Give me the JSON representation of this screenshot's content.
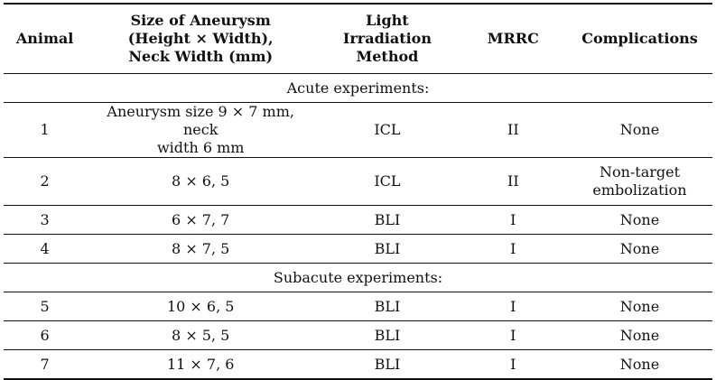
{
  "headers": {
    "animal": "Animal",
    "size": [
      "Size of Aneurysm",
      "(Height × Width),",
      "Neck Width (mm)"
    ],
    "method": [
      "Light Irradiation",
      "Method"
    ],
    "mrrc": "MRRC",
    "complications": "Complications"
  },
  "sections": {
    "acute": "Acute experiments:",
    "subacute": "Subacute experiments:"
  },
  "rows": [
    {
      "animal": "1",
      "size": [
        "Aneurysm size 9 × 7 mm, neck",
        "width 6 mm"
      ],
      "method": "ICL",
      "mrrc": "II",
      "complications": [
        "None"
      ]
    },
    {
      "animal": "2",
      "size": [
        "8 × 6, 5"
      ],
      "method": "ICL",
      "mrrc": "II",
      "complications": [
        "Non-target",
        "embolization"
      ]
    },
    {
      "animal": "3",
      "size": [
        "6 × 7, 7"
      ],
      "method": "BLI",
      "mrrc": "I",
      "complications": [
        "None"
      ]
    },
    {
      "animal": "4",
      "size": [
        "8 × 7, 5"
      ],
      "method": "BLI",
      "mrrc": "I",
      "complications": [
        "None"
      ]
    },
    {
      "animal": "5",
      "size": [
        "10 × 6, 5"
      ],
      "method": "BLI",
      "mrrc": "I",
      "complications": [
        "None"
      ]
    },
    {
      "animal": "6",
      "size": [
        "8 × 5, 5"
      ],
      "method": "BLI",
      "mrrc": "I",
      "complications": [
        "None"
      ]
    },
    {
      "animal": "7",
      "size": [
        "11 × 7, 6"
      ],
      "method": "BLI",
      "mrrc": "I",
      "complications": [
        "None"
      ]
    }
  ]
}
